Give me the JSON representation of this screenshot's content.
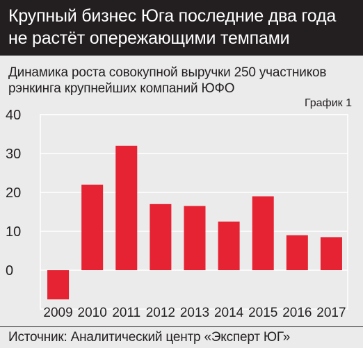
{
  "header": {
    "title": "Крупный бизнес Юга последние два года не растёт опережающими темпами"
  },
  "subtitle": "Динамика роста совокупной выручки 250 участников рэнкинга крупнейших компаний ЮФО",
  "chart_label": "График 1",
  "source": "Источник: Аналитический центр «Эксперт ЮГ»",
  "colors": {
    "bar": "#e52332",
    "grid": "#ffffff",
    "text": "#231f20"
  },
  "chart_data": {
    "type": "bar",
    "categories": [
      "2009",
      "2010",
      "2011",
      "2012",
      "2013",
      "2014",
      "2015",
      "2016",
      "2017"
    ],
    "values": [
      -7.5,
      22,
      32,
      17,
      16.5,
      12.5,
      19,
      9,
      8.5
    ],
    "ylim": [
      -10,
      40
    ],
    "yticks": [
      0,
      10,
      20,
      30,
      40
    ],
    "grid": true,
    "legend": "none"
  }
}
